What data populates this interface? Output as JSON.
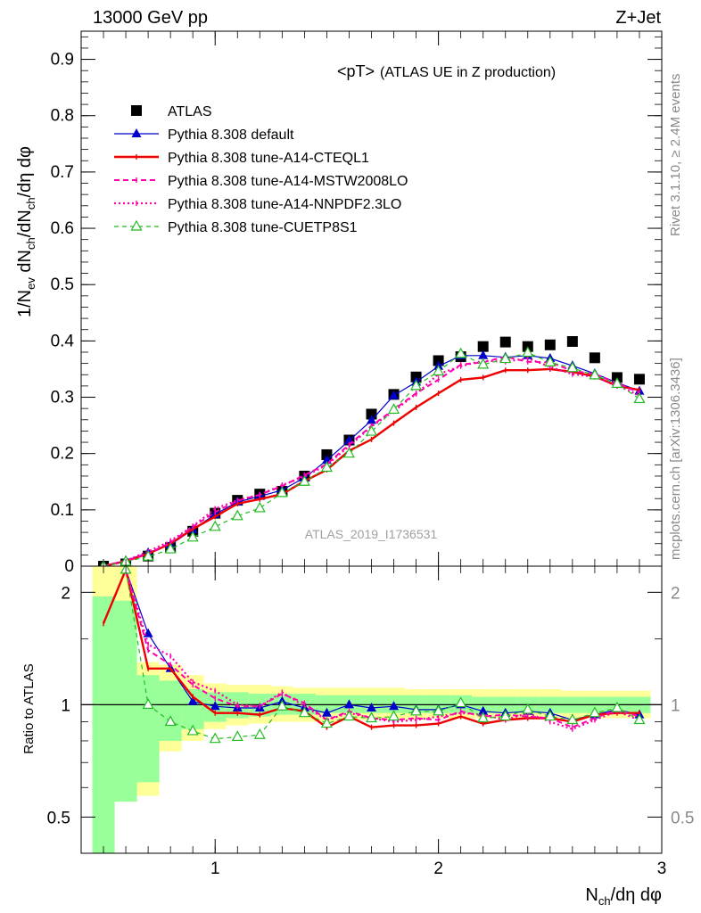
{
  "header": {
    "left": "13000 GeV pp",
    "right": "Z+Jet"
  },
  "title": {
    "main": "<pT>",
    "sub": "(ATLAS UE in Z production)"
  },
  "side_text": {
    "rivet": "Rivet 3.1.10, ≥ 2.4M events",
    "mcplots": "mcplots.cern.ch [arXiv:1306.3436]"
  },
  "watermark": "ATLAS_2019_I1736531",
  "axis_labels": {
    "y_main": "1/N_ev dN_ch/dN_ch/dη dφ",
    "y_ratio": "Ratio to ATLAS",
    "x": "N_ch/dη dφ"
  },
  "chart_data": [
    {
      "type": "scatter",
      "panel": "main",
      "xlim": [
        0.4,
        3.0
      ],
      "ylim": [
        0,
        0.95
      ],
      "x_ticks": [
        "1",
        "2",
        "3"
      ],
      "y_ticks": [
        "0",
        "0.1",
        "0.2",
        "0.3",
        "0.4",
        "0.5",
        "0.6",
        "0.7",
        "0.8",
        "0.9"
      ],
      "legend_position": "top-left",
      "x": [
        0.5,
        0.6,
        0.7,
        0.8,
        0.9,
        1.0,
        1.1,
        1.2,
        1.3,
        1.4,
        1.5,
        1.6,
        1.7,
        1.8,
        1.9,
        2.0,
        2.1,
        2.2,
        2.3,
        2.4,
        2.5,
        2.6,
        2.7,
        2.8,
        2.9
      ],
      "series": [
        {
          "name": "ATLAS",
          "color": "#000000",
          "style": "marker-square",
          "values": [
            0.0,
            0.004,
            0.018,
            0.033,
            0.062,
            0.094,
            0.117,
            0.128,
            0.133,
            0.16,
            0.198,
            0.224,
            0.27,
            0.305,
            0.336,
            0.365,
            0.372,
            0.39,
            0.398,
            0.39,
            0.393,
            0.399,
            0.37,
            0.335,
            0.332
          ]
        },
        {
          "name": "Pythia 8.308 default",
          "color": "#0000cc",
          "style": "solid-triangle",
          "values": [
            0.0,
            0.01,
            0.024,
            0.038,
            0.065,
            0.092,
            0.114,
            0.124,
            0.135,
            0.157,
            0.188,
            0.223,
            0.259,
            0.303,
            0.327,
            0.355,
            0.374,
            0.374,
            0.371,
            0.374,
            0.369,
            0.356,
            0.342,
            0.326,
            0.311
          ]
        },
        {
          "name": "Pythia 8.308 tune-A14-CTEQL1",
          "color": "#ee0000",
          "style": "thick-solid",
          "values": [
            0.0,
            0.009,
            0.022,
            0.04,
            0.066,
            0.088,
            0.111,
            0.119,
            0.128,
            0.151,
            0.171,
            0.205,
            0.225,
            0.254,
            0.282,
            0.307,
            0.331,
            0.335,
            0.348,
            0.348,
            0.35,
            0.345,
            0.337,
            0.32,
            0.313
          ]
        },
        {
          "name": "Pythia 8.308 tune-A14-MSTW2008LO",
          "color": "#ff00aa",
          "style": "dashed",
          "values": [
            0.0,
            0.01,
            0.022,
            0.042,
            0.07,
            0.096,
            0.116,
            0.127,
            0.142,
            0.162,
            0.181,
            0.216,
            0.249,
            0.278,
            0.307,
            0.331,
            0.358,
            0.362,
            0.372,
            0.363,
            0.362,
            0.347,
            0.341,
            0.325,
            0.308
          ]
        },
        {
          "name": "Pythia 8.308 tune-A14-NNPDF2.3LO",
          "color": "#ff00aa",
          "style": "dotted",
          "values": [
            0.0,
            0.01,
            0.026,
            0.045,
            0.071,
            0.102,
            0.117,
            0.127,
            0.144,
            0.159,
            0.18,
            0.213,
            0.248,
            0.275,
            0.306,
            0.341,
            0.355,
            0.365,
            0.363,
            0.369,
            0.354,
            0.341,
            0.336,
            0.321,
            0.303
          ]
        },
        {
          "name": "Pythia 8.308 tune-CUETP8S1",
          "color": "#22bb22",
          "style": "dashed-open-triangle",
          "values": [
            0.0,
            0.008,
            0.017,
            0.03,
            0.051,
            0.07,
            0.089,
            0.103,
            0.13,
            0.15,
            0.175,
            0.2,
            0.239,
            0.278,
            0.32,
            0.346,
            0.377,
            0.358,
            0.368,
            0.379,
            0.362,
            0.352,
            0.339,
            0.324,
            0.297
          ]
        }
      ]
    },
    {
      "type": "line",
      "panel": "ratio",
      "xlim": [
        0.4,
        3.0
      ],
      "ylim": [
        0.4,
        2.35
      ],
      "log_scale_y": true,
      "reference_line": 1,
      "x_ticks": [
        "1",
        "2",
        "3"
      ],
      "y_ticks": [
        "0.5",
        "1",
        "2"
      ],
      "x": [
        0.5,
        0.6,
        0.7,
        0.8,
        0.9,
        1.0,
        1.1,
        1.2,
        1.3,
        1.4,
        1.5,
        1.6,
        1.7,
        1.8,
        1.9,
        2.0,
        2.1,
        2.2,
        2.3,
        2.4,
        2.5,
        2.6,
        2.7,
        2.8,
        2.9
      ],
      "bands": {
        "yellow_upper": [
          2.5,
          2.5,
          1.3,
          1.28,
          1.2,
          1.14,
          1.13,
          1.13,
          1.12,
          1.11,
          1.11,
          1.11,
          1.11,
          1.11,
          1.1,
          1.1,
          1.1,
          1.1,
          1.1,
          1.1,
          1.1,
          1.09,
          1.09,
          1.09,
          1.09
        ],
        "yellow_lower": [
          0.2,
          0.55,
          0.57,
          0.75,
          0.8,
          0.86,
          0.88,
          0.89,
          0.9,
          0.9,
          0.9,
          0.91,
          0.91,
          0.91,
          0.91,
          0.92,
          0.92,
          0.92,
          0.92,
          0.92,
          0.92,
          0.92,
          0.92,
          0.92,
          0.92
        ],
        "green_upper": [
          1.95,
          1.9,
          1.2,
          1.16,
          1.1,
          1.08,
          1.08,
          1.07,
          1.07,
          1.07,
          1.06,
          1.06,
          1.06,
          1.06,
          1.06,
          1.06,
          1.06,
          1.05,
          1.05,
          1.05,
          1.05,
          1.05,
          1.05,
          1.05,
          1.05
        ],
        "green_lower": [
          0.2,
          0.55,
          0.62,
          0.8,
          0.86,
          0.9,
          0.92,
          0.93,
          0.94,
          0.94,
          0.95,
          0.95,
          0.95,
          0.95,
          0.95,
          0.95,
          0.95,
          0.95,
          0.95,
          0.95,
          0.95,
          0.95,
          0.95,
          0.95,
          0.95
        ]
      },
      "series": [
        {
          "name": "Pythia 8.308 default",
          "color": "#0000cc",
          "style": "solid-triangle",
          "values": [
            null,
            2.3,
            1.55,
            1.25,
            1.02,
            0.99,
            0.98,
            0.98,
            1.02,
            0.98,
            0.95,
            1.0,
            0.98,
            0.99,
            0.97,
            0.97,
            1.0,
            0.96,
            0.95,
            0.96,
            0.95,
            0.91,
            0.94,
            0.97,
            0.94
          ]
        },
        {
          "name": "Pythia 8.308 tune-A14-CTEQL1",
          "color": "#ee0000",
          "style": "thick-solid",
          "values": [
            1.65,
            2.3,
            1.25,
            1.25,
            1.05,
            0.95,
            0.95,
            0.94,
            0.98,
            0.96,
            0.87,
            0.93,
            0.87,
            0.88,
            0.88,
            0.89,
            0.93,
            0.89,
            0.91,
            0.92,
            0.92,
            0.9,
            0.94,
            0.95,
            0.95
          ]
        },
        {
          "name": "Pythia 8.308 tune-A14-MSTW2008LO",
          "color": "#ff00aa",
          "style": "dashed",
          "values": [
            null,
            2.3,
            1.4,
            1.28,
            1.13,
            1.04,
            0.99,
            0.99,
            1.07,
            1.01,
            0.91,
            0.96,
            0.92,
            0.91,
            0.92,
            0.91,
            0.96,
            0.93,
            0.94,
            0.93,
            0.92,
            0.87,
            0.92,
            0.97,
            0.93
          ]
        },
        {
          "name": "Pythia 8.308 tune-A14-NNPDF2.3LO",
          "color": "#ff00aa",
          "style": "dotted",
          "values": [
            null,
            2.3,
            1.45,
            1.35,
            1.15,
            1.09,
            1.0,
            0.99,
            1.08,
            0.99,
            0.91,
            0.95,
            0.92,
            0.9,
            0.91,
            0.93,
            0.95,
            0.94,
            0.91,
            0.95,
            0.9,
            0.86,
            0.91,
            0.96,
            0.91
          ]
        },
        {
          "name": "Pythia 8.308 tune-CUETP8S1",
          "color": "#22bb22",
          "style": "dashed-open-triangle",
          "values": [
            null,
            2.3,
            1.0,
            0.9,
            0.85,
            0.81,
            0.82,
            0.83,
            0.99,
            0.95,
            0.89,
            0.93,
            0.92,
            0.93,
            0.96,
            0.96,
            1.01,
            0.92,
            0.93,
            0.97,
            0.93,
            0.91,
            0.95,
            0.98,
            0.91
          ]
        }
      ]
    }
  ]
}
